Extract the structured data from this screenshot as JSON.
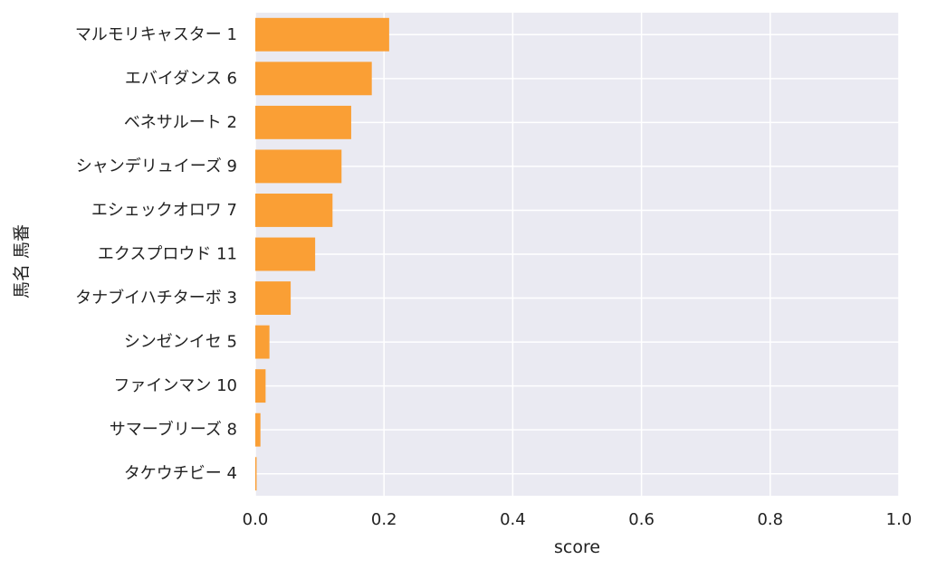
{
  "chart_data": {
    "type": "bar",
    "orientation": "horizontal",
    "categories": [
      "マルモリキャスター 1",
      "エバイダンス 6",
      "ベネサルート 2",
      "シャンデリュイーズ 9",
      "エシェックオロワ 7",
      "エクスプロウド 11",
      "タナブイハチターボ 3",
      "シンゼンイセ 5",
      "ファインマン 10",
      "サマーブリーズ 8",
      "タケウチビー 4"
    ],
    "values": [
      0.208,
      0.181,
      0.149,
      0.134,
      0.12,
      0.093,
      0.055,
      0.022,
      0.016,
      0.008,
      0.002
    ],
    "xlabel": "score",
    "ylabel": "馬名 馬番",
    "xlim": [
      0,
      1.0
    ],
    "xticks": [
      "0.0",
      "0.2",
      "0.4",
      "0.6",
      "0.8",
      "1.0"
    ],
    "grid": true,
    "colors": {
      "bar": "#fa9f35",
      "plot_background": "#eaeaf2",
      "grid": "#ffffff",
      "text": "#222222"
    }
  }
}
